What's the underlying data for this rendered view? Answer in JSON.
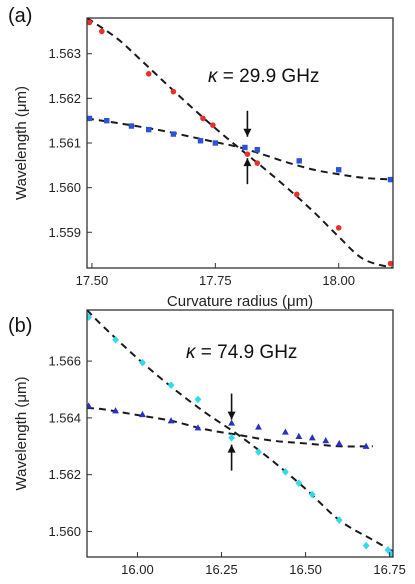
{
  "colors": {
    "red": "#e8312a",
    "blue": "#2a56d6",
    "cyan": "#33d9ee",
    "navy": "#2830c8",
    "fit": "#1a1a1a",
    "frame": "#333333"
  },
  "chart_data": [
    {
      "type": "scatter",
      "panel_label": "(a)",
      "xlabel": "Curvature radius (μm)",
      "ylabel": "Wavelength (μm)",
      "xlim": [
        17.49,
        18.11
      ],
      "ylim": [
        1.5582,
        1.5638
      ],
      "xticks": [
        17.5,
        17.75,
        18.0
      ],
      "xtick_labels": [
        "17.50",
        "17.75",
        "18.00"
      ],
      "yticks": [
        1.559,
        1.56,
        1.561,
        1.562,
        1.563
      ],
      "ytick_labels": [
        "1.559",
        "1.560",
        "1.561",
        "1.562",
        "1.563"
      ],
      "annotation": {
        "symbol": "κ",
        "text": " = 29.9 GHz",
        "x": 17.815,
        "gap_top": 1.56105,
        "gap_bottom": 1.56075
      },
      "series": [
        {
          "color": "red",
          "marker": "circle",
          "x": [
            17.495,
            17.52,
            17.615,
            17.665,
            17.725,
            17.745,
            17.815,
            17.835,
            17.915,
            18.0,
            18.105
          ],
          "y": [
            1.5637,
            1.5635,
            1.56255,
            1.56215,
            1.56155,
            1.5614,
            1.56075,
            1.56055,
            1.55985,
            1.5591,
            1.5583
          ]
        },
        {
          "color": "blue",
          "marker": "square",
          "x": [
            17.495,
            17.53,
            17.58,
            17.615,
            17.665,
            17.72,
            17.75,
            17.81,
            17.835,
            17.92,
            18.0,
            18.105
          ],
          "y": [
            1.56155,
            1.5615,
            1.56138,
            1.5613,
            1.5612,
            1.56105,
            1.561,
            1.5609,
            1.56085,
            1.5606,
            1.5604,
            1.56018
          ]
        }
      ],
      "fits": [
        {
          "x": [
            17.49,
            17.55,
            17.6,
            17.65,
            17.7,
            17.75,
            17.8,
            17.85,
            17.9,
            17.95,
            18.0,
            18.05,
            18.11
          ],
          "y": [
            1.5638,
            1.56335,
            1.56285,
            1.56233,
            1.56182,
            1.56133,
            1.56087,
            1.56042,
            1.55995,
            1.55945,
            1.5589,
            1.5584,
            1.5582
          ]
        },
        {
          "x": [
            17.49,
            17.55,
            17.6,
            17.65,
            17.7,
            17.75,
            17.8,
            17.85,
            17.9,
            17.95,
            18.0,
            18.05,
            18.11
          ],
          "y": [
            1.56155,
            1.56145,
            1.56136,
            1.56126,
            1.56114,
            1.56102,
            1.5609,
            1.56073,
            1.56055,
            1.5604,
            1.5603,
            1.56022,
            1.56018
          ]
        }
      ]
    },
    {
      "type": "scatter",
      "panel_label": "(b)",
      "xlabel": "Curvature radius (μm)",
      "ylabel": "Wavelength (μm)",
      "xlim": [
        15.85,
        16.76
      ],
      "ylim": [
        1.5591,
        1.5678
      ],
      "xticks": [
        16.0,
        16.25,
        16.5,
        16.75
      ],
      "xtick_labels": [
        "16.00",
        "16.25",
        "16.50",
        "16.75"
      ],
      "yticks": [
        1.56,
        1.562,
        1.564,
        1.566
      ],
      "ytick_labels": [
        "1.560",
        "1.562",
        "1.564",
        "1.566"
      ],
      "annotation": {
        "symbol": "κ",
        "text": " = 74.9 GHz",
        "x": 16.28,
        "gap_top": 1.5638,
        "gap_bottom": 1.5632
      },
      "series": [
        {
          "color": "cyan",
          "marker": "diamond",
          "x": [
            15.855,
            15.935,
            16.015,
            16.1,
            16.18,
            16.28,
            16.36,
            16.44,
            16.48,
            16.52,
            16.6,
            16.68,
            16.745,
            16.755
          ],
          "y": [
            1.56755,
            1.56675,
            1.56595,
            1.56515,
            1.56465,
            1.5633,
            1.5628,
            1.5621,
            1.5617,
            1.5613,
            1.5604,
            1.5595,
            1.55935,
            1.5592
          ]
        },
        {
          "color": "navy",
          "marker": "triangle",
          "x": [
            15.855,
            15.935,
            16.015,
            16.1,
            16.18,
            16.28,
            16.36,
            16.44,
            16.48,
            16.52,
            16.56,
            16.6,
            16.68
          ],
          "y": [
            1.56442,
            1.56425,
            1.56412,
            1.5639,
            1.56365,
            1.56382,
            1.56368,
            1.5635,
            1.56335,
            1.5633,
            1.5632,
            1.5631,
            1.563
          ]
        }
      ],
      "fits": [
        {
          "x": [
            15.85,
            15.9,
            16.0,
            16.1,
            16.2,
            16.3,
            16.4,
            16.5,
            16.6,
            16.7,
            16.76
          ],
          "y": [
            1.5678,
            1.5672,
            1.5661,
            1.5651,
            1.5642,
            1.5634,
            1.5625,
            1.5615,
            1.5604,
            1.5597,
            1.5593
          ]
        },
        {
          "x": [
            15.85,
            15.9,
            16.0,
            16.1,
            16.2,
            16.3,
            16.4,
            16.5,
            16.6,
            16.7
          ],
          "y": [
            1.56435,
            1.5643,
            1.5641,
            1.5639,
            1.5636,
            1.5634,
            1.5632,
            1.5631,
            1.563,
            1.563
          ]
        }
      ]
    }
  ]
}
